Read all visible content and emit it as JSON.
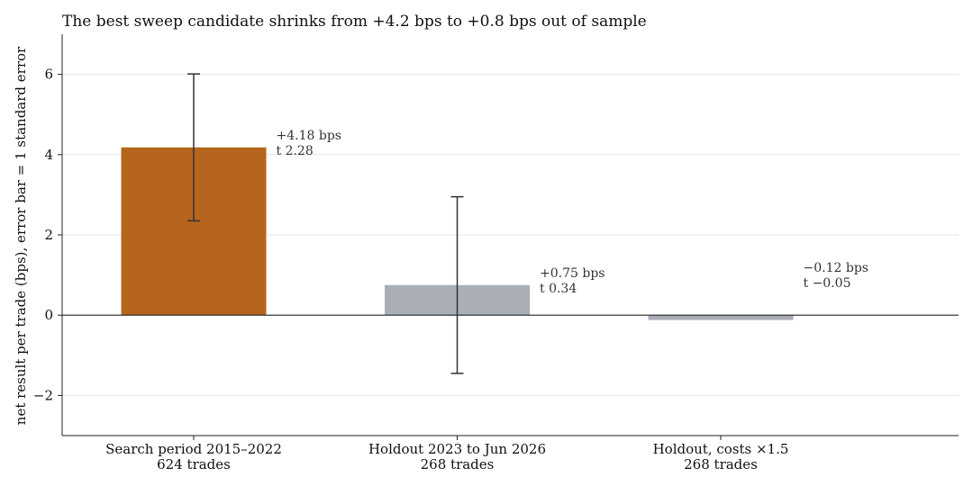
{
  "chart_data": {
    "type": "bar",
    "title": "The best sweep candidate shrinks from +4.2 bps to +0.8 bps out of sample",
    "ylabel": "net result per trade (bps), error bar = 1 standard error",
    "xlabel": "",
    "ylim": [
      -3,
      7
    ],
    "yticks": [
      -2,
      0,
      2,
      4,
      6
    ],
    "ytick_labels": [
      "−2",
      "0",
      "2",
      "4",
      "6"
    ],
    "grid": "horizontal",
    "categories": [
      {
        "line1": "Search period 2015–2022",
        "line2": "624 trades"
      },
      {
        "line1": "Holdout 2023 to Jun 2026",
        "line2": "268 trades"
      },
      {
        "line1": "Holdout, costs ×1.5",
        "line2": "268 trades"
      }
    ],
    "values": [
      4.18,
      0.75,
      -0.12
    ],
    "error": [
      1.83,
      2.2,
      null
    ],
    "colors": [
      "#b5651d",
      "#a9aeb7",
      "#a9aeb7"
    ],
    "annotations": [
      {
        "line1": "+4.18 bps",
        "line2": "t 2.28"
      },
      {
        "line1": "+0.75 bps",
        "line2": "t 0.34"
      },
      {
        "line1": "−0.12 bps",
        "line2": "t −0.05"
      }
    ]
  }
}
